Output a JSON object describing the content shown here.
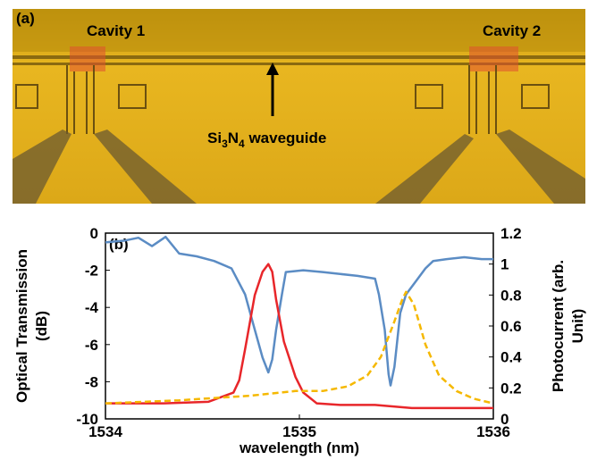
{
  "panel_a": {
    "label": "(a)",
    "cavity_1": "Cavity 1",
    "cavity_2": "Cavity 2",
    "waveguide_label": [
      "Si",
      "3",
      "N",
      "4",
      " waveguide"
    ]
  },
  "chart_data": {
    "type": "line",
    "panel_label": "(b)",
    "xlabel": "wavelength (nm)",
    "ylabel": [
      "Optical Transmission",
      "(dB)"
    ],
    "y2label": [
      "Photocurrent (arb.",
      "Unit)"
    ],
    "xlim": [
      1534,
      1536
    ],
    "xticks": [
      1534,
      1535,
      1536
    ],
    "ylim": [
      -10,
      0
    ],
    "yticks": [
      0,
      -2,
      -4,
      -6,
      -8,
      -10
    ],
    "y2lim": [
      0,
      1.2
    ],
    "y2ticks": [
      0,
      0.2,
      0.4,
      0.6,
      0.8,
      1,
      1.2
    ],
    "series": [
      {
        "color": "#5b8cc4",
        "dash": false,
        "x": [
          1534.0,
          1534.1,
          1534.17,
          1534.24,
          1534.31,
          1534.38,
          1534.47,
          1534.56,
          1534.65,
          1534.72,
          1534.77,
          1534.81,
          1534.84,
          1534.86,
          1534.88,
          1534.91,
          1534.93,
          1535.02,
          1535.12,
          1535.21,
          1535.3,
          1535.39,
          1535.41,
          1535.44,
          1535.46,
          1535.47,
          1535.49,
          1535.52,
          1535.55,
          1535.6,
          1535.65,
          1535.69,
          1535.76,
          1535.85,
          1535.94,
          1536.0
        ],
        "values": [
          -0.5,
          -0.4,
          -0.25,
          -0.7,
          -0.2,
          -1.1,
          -1.25,
          -1.5,
          -1.9,
          -3.3,
          -5.2,
          -6.7,
          -7.5,
          -6.8,
          -5.2,
          -3.3,
          -2.1,
          -2.0,
          -2.1,
          -2.2,
          -2.3,
          -2.45,
          -3.3,
          -5.2,
          -7.6,
          -8.2,
          -7.2,
          -4.3,
          -3.3,
          -2.6,
          -1.9,
          -1.5,
          -1.4,
          -1.3,
          -1.4,
          -1.4
        ]
      },
      {
        "color": "#e8262a",
        "dash": false,
        "axis": "y2",
        "x": [
          1534.0,
          1534.3,
          1534.53,
          1534.66,
          1534.69,
          1534.72,
          1534.77,
          1534.81,
          1534.84,
          1534.86,
          1534.88,
          1534.92,
          1534.98,
          1535.02,
          1535.09,
          1535.21,
          1535.39,
          1535.58,
          1535.76,
          1536.0
        ],
        "values": [
          0.1,
          0.1,
          0.11,
          0.17,
          0.25,
          0.45,
          0.8,
          0.95,
          1.0,
          0.95,
          0.77,
          0.5,
          0.27,
          0.17,
          0.1,
          0.09,
          0.09,
          0.07,
          0.07,
          0.07
        ]
      },
      {
        "color": "#f5b800",
        "dash": true,
        "axis": "y2",
        "x": [
          1534.0,
          1534.38,
          1534.75,
          1534.98,
          1535.12,
          1535.25,
          1535.35,
          1535.42,
          1535.49,
          1535.53,
          1535.55,
          1535.59,
          1535.65,
          1535.72,
          1535.81,
          1535.9,
          1536.0
        ],
        "values": [
          0.1,
          0.12,
          0.15,
          0.18,
          0.18,
          0.21,
          0.28,
          0.4,
          0.63,
          0.77,
          0.82,
          0.74,
          0.48,
          0.28,
          0.18,
          0.13,
          0.1
        ]
      }
    ]
  }
}
